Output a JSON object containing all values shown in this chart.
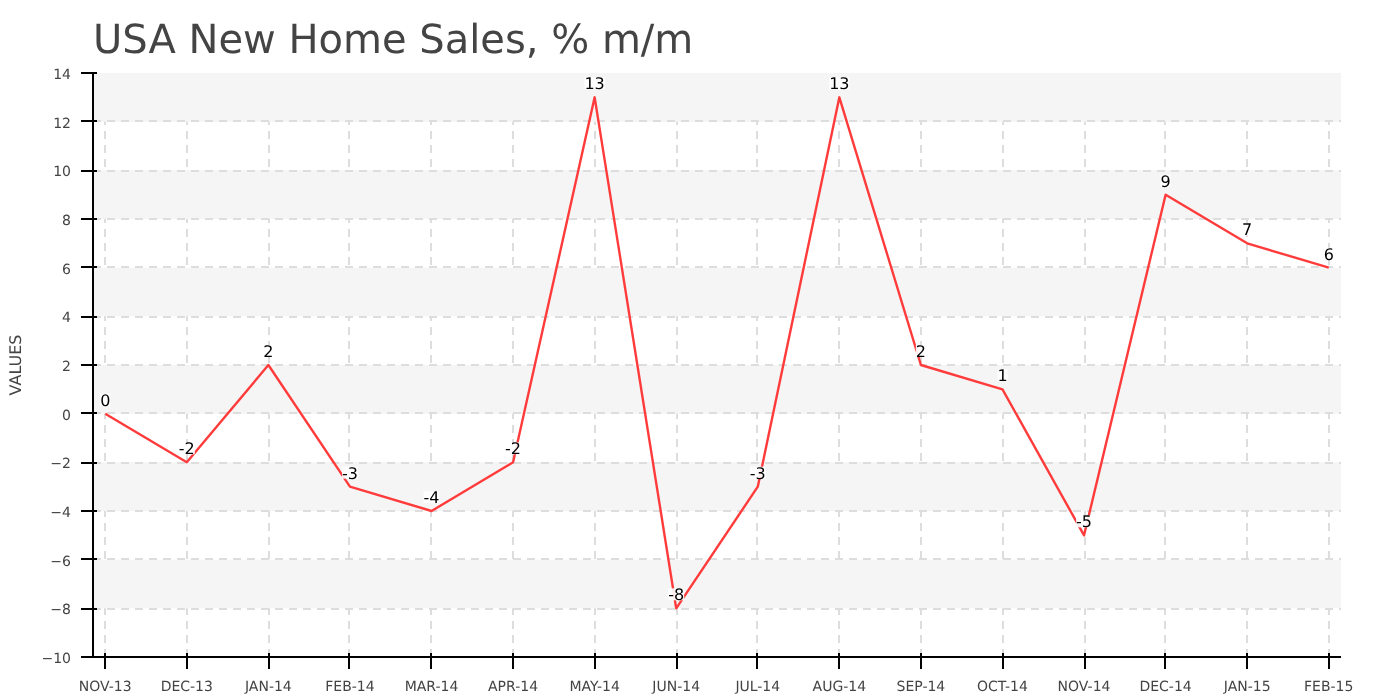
{
  "chart_data": {
    "type": "line",
    "title": "USA New Home Sales, % m/m",
    "ylabel": "VALUES",
    "categories": [
      "NOV-13",
      "DEC-13",
      "JAN-14",
      "FEB-14",
      "MAR-14",
      "APR-14",
      "MAY-14",
      "JUN-14",
      "JUL-14",
      "AUG-14",
      "SEP-14",
      "OCT-14",
      "NOV-14",
      "DEC-14",
      "JAN-15",
      "FEB-15"
    ],
    "series": [
      {
        "color": "#ff3b3b",
        "values": [
          0,
          -2,
          2,
          -3,
          -4,
          -2,
          13,
          -8,
          -3,
          13,
          2,
          1,
          -5,
          9,
          7,
          6
        ]
      }
    ],
    "ylim": [
      -10,
      14
    ],
    "yticks": [
      -10,
      -8,
      -6,
      -4,
      -2,
      0,
      2,
      4,
      6,
      8,
      10,
      12,
      14
    ],
    "grid": true,
    "data_labels": true,
    "marker": "none",
    "line_style": "solid"
  }
}
